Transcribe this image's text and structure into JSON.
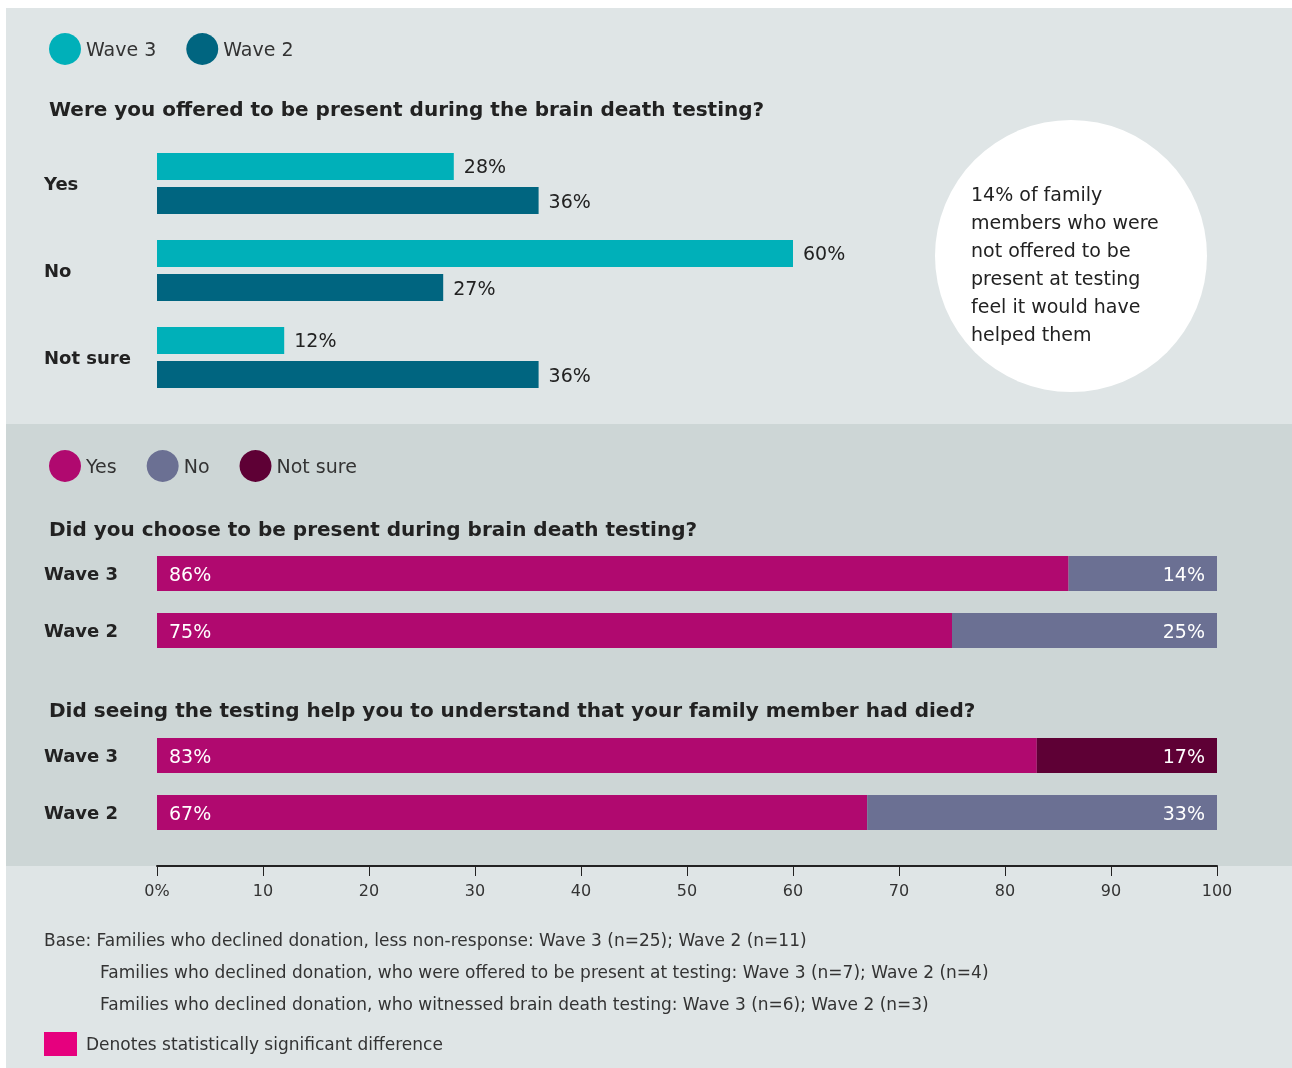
{
  "chart_data": [
    {
      "type": "bar",
      "orientation": "horizontal",
      "title": "Were you offered to be present during the brain death testing?",
      "categories": [
        "Yes",
        "No",
        "Not sure"
      ],
      "xlim": [
        0,
        100
      ],
      "tick_labels": "y",
      "legend": "top left",
      "grid": false,
      "series": [
        {
          "name": "Wave 3",
          "color": "#00b0b9",
          "values": [
            28,
            60,
            12
          ],
          "value_labels": [
            "28%",
            "60%",
            "12%"
          ]
        },
        {
          "name": "Wave 2",
          "color": "#006580",
          "values": [
            36,
            27,
            36
          ],
          "value_labels": [
            "36%",
            "27%",
            "36%"
          ]
        }
      ],
      "annotations": [
        "14% of family members who were not offered to be present at testing feel it would have helped them"
      ]
    },
    {
      "type": "bar",
      "orientation": "horizontal",
      "stacked": true,
      "title": "Did you choose to be present during brain death testing?",
      "categories": [
        "Wave 3",
        "Wave 2"
      ],
      "xlim": [
        0,
        100
      ],
      "tick_labels": "y",
      "legend": "top left",
      "grid": false,
      "series": [
        {
          "name": "Yes",
          "color": "#b0096f",
          "values": [
            86,
            75
          ],
          "value_labels": [
            "86%",
            "75%"
          ]
        },
        {
          "name": "No",
          "color": "#6b7093",
          "values": [
            14,
            25
          ],
          "value_labels": [
            "14%",
            "25%"
          ]
        },
        {
          "name": "Not sure",
          "color": "#5e0035",
          "values": [
            null,
            null
          ],
          "value_labels": [
            null,
            null
          ]
        }
      ]
    },
    {
      "type": "bar",
      "orientation": "horizontal",
      "stacked": true,
      "title": "Did seeing the testing help you to understand that your family member had died?",
      "categories": [
        "Wave 3",
        "Wave 2"
      ],
      "xlim": [
        0,
        100
      ],
      "xticks": [
        {
          "value": 0,
          "label": "0%"
        },
        10,
        20,
        30,
        40,
        50,
        60,
        70,
        80,
        90,
        100
      ],
      "legend": false,
      "grid": false,
      "series": [
        {
          "color": "#b0096f",
          "values": [
            83,
            67
          ],
          "value_labels": [
            "83%",
            "67%"
          ]
        },
        {
          "color": "#6b7093",
          "values": [
            null,
            33
          ],
          "value_labels": [
            null,
            "33%"
          ]
        },
        {
          "color": "#5e0035",
          "values": [
            17,
            null
          ],
          "value_labels": [
            "17%",
            null
          ]
        }
      ],
      "annotations": [
        "Base: Families who declined donation, less non-response: Wave 3 (n=25); Wave 2 (n=11)",
        "Families who declined donation, who were offered to be present at testing: Wave 3 (n=7); Wave 2 (n=4)",
        "Families who declined donation, who witnessed brain death testing: Wave 3 (n=6); Wave 2 (n=3)",
        "Denotes statistically significant difference"
      ]
    }
  ]
}
